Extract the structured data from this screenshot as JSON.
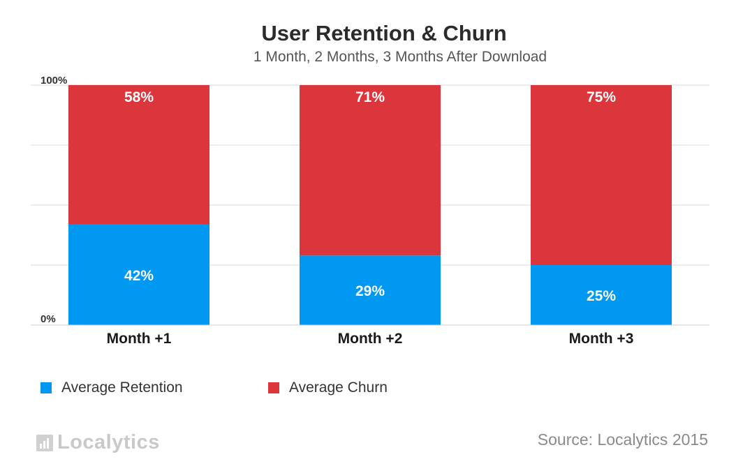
{
  "chart_data": {
    "type": "bar",
    "stacked": true,
    "title": "User Retention & Churn",
    "subtitle": "1 Month, 2 Months, 3 Months After Download",
    "categories": [
      "Month +1",
      "Month +2",
      "Month +3"
    ],
    "series": [
      {
        "name": "Average Retention",
        "values": [
          42,
          29,
          25
        ],
        "color": "#0098f0"
      },
      {
        "name": "Average Churn",
        "values": [
          58,
          71,
          75
        ],
        "color": "#db363b"
      }
    ],
    "data_labels": {
      "Average Retention": [
        "42%",
        "29%",
        "25%"
      ],
      "Average Churn": [
        "58%",
        "71%",
        "75%"
      ]
    },
    "y_tick_labels": {
      "bottom": "0%",
      "top": "100%"
    },
    "ylim": [
      0,
      100
    ],
    "grid": true,
    "legend_position": "bottom-left"
  },
  "footer": {
    "logo_text": "Localytics",
    "source": "Source: Localytics 2015"
  }
}
